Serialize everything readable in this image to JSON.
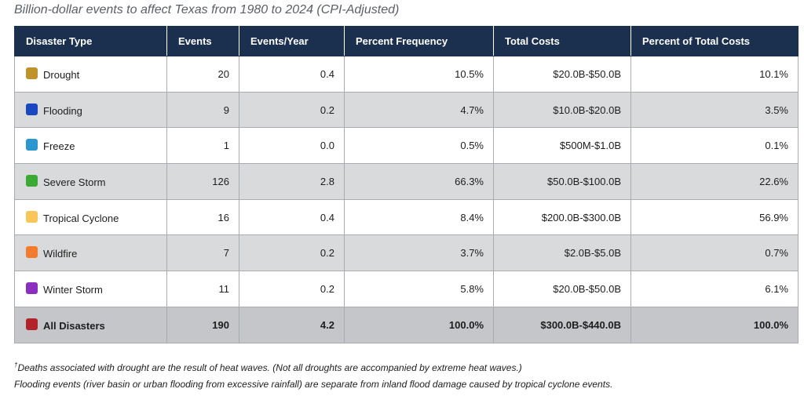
{
  "title": "Billion-dollar events to affect Texas from 1980 to 2024 (CPI-Adjusted)",
  "columns": [
    "Disaster Type",
    "Events",
    "Events/Year",
    "Percent Frequency",
    "Total Costs",
    "Percent of Total Costs"
  ],
  "rows": [
    {
      "type": "Drought",
      "color": "#c0922a",
      "events": "20",
      "per_year": "0.4",
      "pct_freq": "10.5%",
      "costs": "$20.0B-$50.0B",
      "pct_costs": "10.1%"
    },
    {
      "type": "Flooding",
      "color": "#1947c2",
      "events": "9",
      "per_year": "0.2",
      "pct_freq": "4.7%",
      "costs": "$10.0B-$20.0B",
      "pct_costs": "3.5%"
    },
    {
      "type": "Freeze",
      "color": "#2a98cf",
      "events": "1",
      "per_year": "0.0",
      "pct_freq": "0.5%",
      "costs": "$500M-$1.0B",
      "pct_costs": "0.1%"
    },
    {
      "type": "Severe Storm",
      "color": "#3aaa35",
      "events": "126",
      "per_year": "2.8",
      "pct_freq": "66.3%",
      "costs": "$50.0B-$100.0B",
      "pct_costs": "22.6%"
    },
    {
      "type": "Tropical Cyclone",
      "color": "#f8c659",
      "events": "16",
      "per_year": "0.4",
      "pct_freq": "8.4%",
      "costs": "$200.0B-$300.0B",
      "pct_costs": "56.9%"
    },
    {
      "type": "Wildfire",
      "color": "#f27b2d",
      "events": "7",
      "per_year": "0.2",
      "pct_freq": "3.7%",
      "costs": "$2.0B-$5.0B",
      "pct_costs": "0.7%"
    },
    {
      "type": "Winter Storm",
      "color": "#8b2fbf",
      "events": "11",
      "per_year": "0.2",
      "pct_freq": "5.8%",
      "costs": "$20.0B-$50.0B",
      "pct_costs": "6.1%"
    }
  ],
  "total": {
    "type": "All Disasters",
    "color": "#b2222a",
    "events": "190",
    "per_year": "4.2",
    "pct_freq": "100.0%",
    "costs": "$300.0B-$440.0B",
    "pct_costs": "100.0%"
  },
  "footnotes": {
    "dagger": "†",
    "line1": "Deaths associated with drought are the result of heat waves. (Not all droughts are accompanied by extreme heat waves.)",
    "line2": "Flooding events (river basin or urban flooding from excessive rainfall) are separate from inland flood damage caused by tropical cyclone events."
  }
}
